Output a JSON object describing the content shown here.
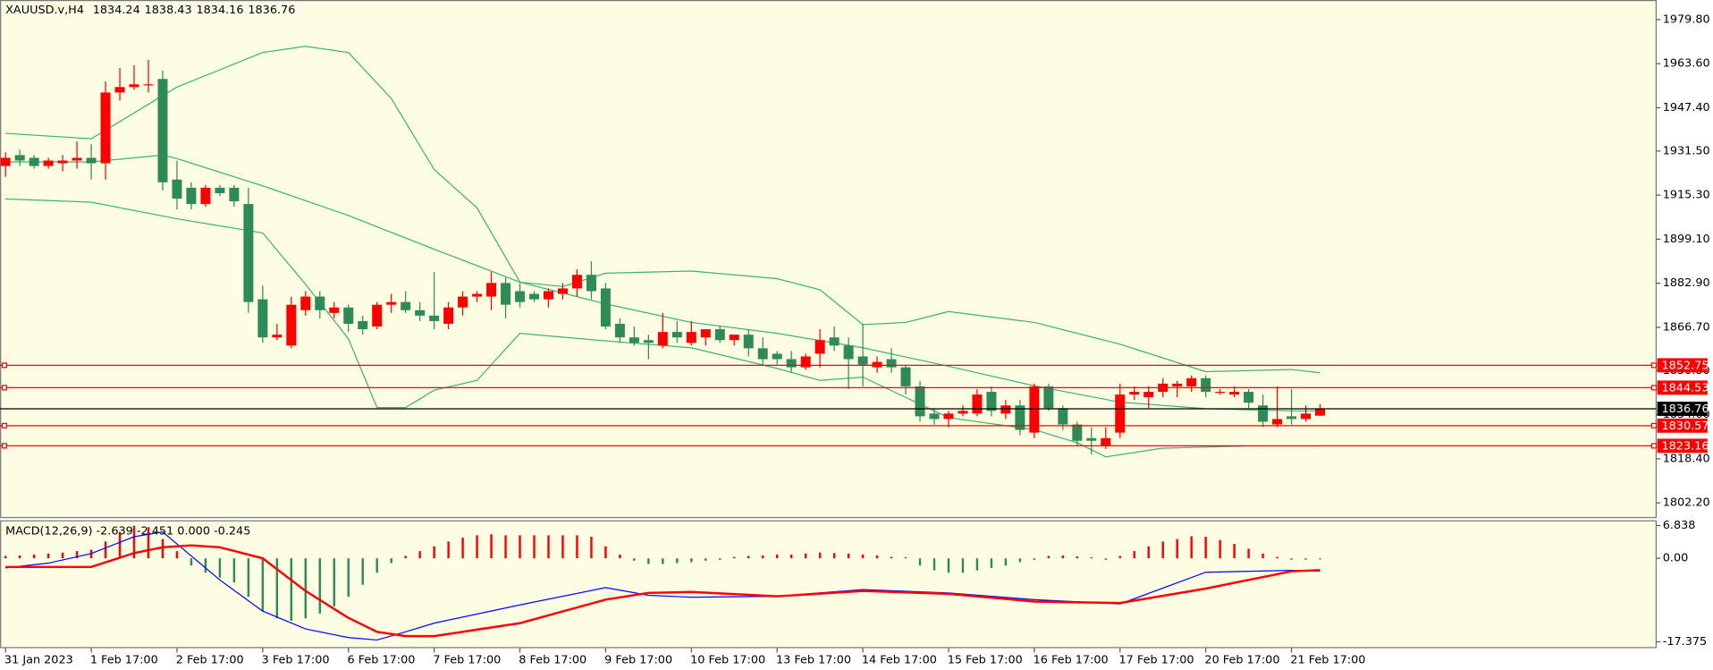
{
  "chart_data": [
    {
      "type": "candlestick",
      "title": "XAUUSD.v,H4",
      "categories": [
        "31 Jan 2023",
        null,
        null,
        null,
        null,
        null,
        "1 Feb 17:00",
        null,
        null,
        null,
        null,
        null,
        "2 Feb 17:00",
        null,
        null,
        null,
        null,
        null,
        "3 Feb 17:00",
        null,
        null,
        null,
        null,
        null,
        "6 Feb 17:00",
        null,
        null,
        null,
        null,
        null,
        "7 Feb 17:00",
        null,
        null,
        null,
        null,
        null,
        "8 Feb 17:00",
        null,
        null,
        null,
        null,
        null,
        "9 Feb 17:00",
        null,
        null,
        null,
        null,
        null,
        "10 Feb 17:00",
        null,
        null,
        null,
        null,
        null,
        "13 Feb 17:00",
        null,
        null,
        null,
        null,
        null,
        "14 Feb 17:00",
        null,
        null,
        null,
        null,
        null,
        "15 Feb 17:00",
        null,
        null,
        null,
        null,
        null,
        "16 Feb 17:00",
        null,
        null,
        null,
        null,
        null,
        "17 Feb 17:00",
        null,
        null,
        null,
        null,
        null,
        "20 Feb 17:00",
        null,
        null,
        null,
        null,
        null,
        "21 Feb 17:00",
        null,
        null
      ],
      "open": [
        1926,
        1930,
        1929,
        1926,
        1927,
        1928,
        1929,
        1927,
        1953,
        1955,
        1956,
        1958,
        1921,
        1918,
        1912,
        1918,
        1918,
        1912,
        1877,
        1863,
        1860,
        1873,
        1878,
        1872,
        1874,
        1869,
        1867,
        1875,
        1876,
        1873,
        1871,
        1868,
        1874,
        1878,
        1878,
        1883,
        1880,
        1879,
        1877,
        1879,
        1881,
        1886,
        1881,
        1868,
        1863,
        1862,
        1860,
        1865,
        1861,
        1863,
        1866,
        1862,
        1864,
        1859,
        1857,
        1855,
        1852,
        1857,
        1863,
        1860,
        1856,
        1852,
        1855,
        1852,
        1845,
        1835,
        1833,
        1835,
        1835,
        1843,
        1835,
        1838,
        1828,
        1845,
        1837,
        1831,
        1826,
        1823,
        1828,
        1842,
        1841,
        1843,
        1845,
        1845,
        1848,
        1843,
        1842,
        1843,
        1838,
        1831,
        1834,
        1833,
        1834.24
      ],
      "high": [
        1931,
        1932,
        1930,
        1929,
        1930,
        1935,
        1934,
        1957,
        1962,
        1963,
        1965,
        1961,
        1928,
        1920,
        1919,
        1919,
        1919,
        1918,
        1882,
        1868,
        1878,
        1880,
        1880,
        1876,
        1875,
        1871,
        1876,
        1879,
        1880,
        1876,
        1887,
        1876,
        1880,
        1880,
        1887,
        1885,
        1883,
        1880,
        1881,
        1883,
        1888,
        1891,
        1883,
        1870,
        1867,
        1864,
        1872,
        1869,
        1869,
        1866,
        1867,
        1864,
        1866,
        1863,
        1858,
        1858,
        1857,
        1866,
        1867,
        1863,
        1868,
        1856,
        1859,
        1853,
        1847,
        1837,
        1836,
        1838,
        1844,
        1845,
        1840,
        1840,
        1846,
        1846,
        1838,
        1832,
        1830,
        1830,
        1846,
        1845,
        1845,
        1848,
        1847,
        1849,
        1849,
        1844,
        1845,
        1844,
        1842,
        1845,
        1844,
        1838,
        1838.43
      ],
      "low": [
        1922,
        1926,
        1925,
        1925,
        1924,
        1925,
        1921,
        1921,
        1950,
        1954,
        1953,
        1917,
        1910,
        1910,
        1911,
        1915,
        1911,
        1872,
        1861,
        1862,
        1859,
        1871,
        1870,
        1870,
        1865,
        1864,
        1866,
        1872,
        1872,
        1869,
        1866,
        1866,
        1871,
        1876,
        1873,
        1870,
        1874,
        1876,
        1874,
        1877,
        1878,
        1877,
        1866,
        1861,
        1860,
        1855,
        1859,
        1861,
        1860,
        1860,
        1861,
        1860,
        1856,
        1853,
        1853,
        1850,
        1851,
        1852,
        1858,
        1844,
        1845,
        1850,
        1850,
        1842,
        1832,
        1831,
        1830,
        1834,
        1834,
        1834,
        1833,
        1827,
        1826,
        1836,
        1829,
        1823,
        1820,
        1822,
        1826,
        1840,
        1837,
        1841,
        1841,
        1843,
        1841,
        1842,
        1841,
        1837,
        1830,
        1830,
        1831,
        1832,
        1834.16
      ],
      "close": [
        1929,
        1928,
        1926,
        1928,
        1928,
        1929,
        1927,
        1953,
        1955,
        1956,
        1956,
        1920,
        1914,
        1912,
        1918,
        1916,
        1913,
        1876,
        1863,
        1864,
        1875,
        1878,
        1873,
        1874,
        1868,
        1866,
        1875,
        1876,
        1873,
        1871,
        1869,
        1874,
        1878,
        1879,
        1883,
        1875,
        1876,
        1877,
        1880,
        1881,
        1886,
        1880,
        1867,
        1863,
        1861,
        1861,
        1865,
        1863,
        1865,
        1866,
        1862,
        1864,
        1859,
        1855,
        1855,
        1852,
        1856,
        1862,
        1860,
        1855,
        1853,
        1854,
        1852,
        1845,
        1834,
        1833,
        1835,
        1836,
        1842,
        1836,
        1838,
        1829,
        1845,
        1837,
        1831,
        1825,
        1825,
        1826,
        1842,
        1843,
        1843,
        1846,
        1846,
        1848,
        1843,
        1843,
        1843,
        1839,
        1832,
        1833,
        1833,
        1835,
        1836.76
      ],
      "up_color": "#ff0000",
      "down_color": "#2e8b57",
      "bands": [
        {
          "color": "#3cb371",
          "x": [
            0,
            6,
            12,
            18,
            21,
            24,
            27,
            30,
            33,
            36,
            39,
            42,
            48,
            54,
            57,
            60,
            63,
            66,
            72,
            78,
            84,
            90,
            92
          ],
          "values": [
            1938,
            1936,
            1955,
            1967.7,
            1970,
            1967.7,
            1950.8,
            1924.7,
            1910.6,
            1883.3,
            1881.7,
            1886.6,
            1887.4,
            1884.6,
            1880.5,
            1867.7,
            1868.5,
            1872.5,
            1868.5,
            1860.5,
            1850.4,
            1851.2,
            1850
          ]
        },
        {
          "color": "#3cb371",
          "x": [
            0,
            6,
            11,
            12,
            18,
            24,
            30,
            36,
            42,
            48,
            54,
            60,
            66,
            72,
            78,
            84,
            90,
            92
          ],
          "values": [
            1927.5,
            1927.5,
            1930,
            1928.7,
            1918.7,
            1907.8,
            1895.4,
            1883.3,
            1875.3,
            1868.5,
            1864.5,
            1859.2,
            1852.4,
            1845.2,
            1839.2,
            1836.8,
            1836,
            1836
          ]
        },
        {
          "color": "#3cb371",
          "x": [
            0,
            6,
            12,
            18,
            21,
            24,
            26,
            28,
            30,
            33,
            36,
            42,
            48,
            54,
            57,
            60,
            66,
            72,
            75,
            77,
            81,
            87,
            92
          ],
          "values": [
            1913.9,
            1912.7,
            1906.6,
            1901.4,
            1882.5,
            1862.5,
            1837.2,
            1837.2,
            1843.6,
            1847.2,
            1864.5,
            1861.7,
            1859.2,
            1851.6,
            1847.2,
            1848.4,
            1833.5,
            1829.1,
            1824.3,
            1819.1,
            1822.3,
            1823.1,
            1823.1
          ]
        }
      ],
      "levels": {
        "color": "#ff0000",
        "values": [
          1852.75,
          1844.53,
          1830.57,
          1823.16
        ]
      },
      "bid_color": "#000000",
      "ylim": [
        1796.6,
        1987.0
      ],
      "yticks": [
        {
          "value": 1979.8,
          "label": "1979.80"
        },
        {
          "value": 1963.6,
          "label": "1963.60"
        },
        {
          "value": 1947.4,
          "label": "1947.40"
        },
        {
          "value": 1931.5,
          "label": "1931.50"
        },
        {
          "value": 1915.3,
          "label": "1915.30"
        },
        {
          "value": 1899.1,
          "label": "1899.10"
        },
        {
          "value": 1882.9,
          "label": "1882.90"
        },
        {
          "value": 1866.7,
          "label": "1866.70"
        },
        {
          "value": 1850.8,
          "label": "1850.80"
        },
        {
          "value": 1834.6,
          "label": "1834.60"
        },
        {
          "value": 1818.4,
          "label": "1818.40"
        },
        {
          "value": 1802.2,
          "label": "1802.20"
        }
      ]
    },
    {
      "type": "macd",
      "title": "MACD(12,26,9) -2.639 -2.451 0.000 -0.245",
      "histogram": {
        "up_color": "#ff0000",
        "down_color": "#2e8b57",
        "values": [
          0.5,
          0.6,
          0.8,
          1,
          1.2,
          1.5,
          1.8,
          3.5,
          5.5,
          6.8,
          6.5,
          4,
          1.5,
          -1.5,
          -3,
          -4,
          -5,
          -8,
          -11,
          -12.5,
          -13,
          -12.5,
          -11.5,
          -10,
          -8,
          -5.5,
          -3,
          -1,
          0.5,
          1.5,
          2.5,
          3.5,
          4.3,
          4.8,
          5,
          4.8,
          4.8,
          4.8,
          4.8,
          4.8,
          4.8,
          4.5,
          2.5,
          0.8,
          -0.5,
          -1.2,
          -1.2,
          -1,
          -0.8,
          -0.5,
          -0.3,
          0.3,
          0.5,
          0.6,
          0.8,
          0.8,
          1,
          1.2,
          1.1,
          1,
          0.8,
          0.6,
          0.3,
          0.2,
          -1.5,
          -2.5,
          -3,
          -3,
          -2.5,
          -2,
          -1.5,
          -0.8,
          -0.3,
          0.5,
          0.6,
          0.4,
          0.2,
          -0.3,
          0.5,
          1.5,
          2.5,
          3.5,
          4,
          4.6,
          4.5,
          3.8,
          3,
          2,
          1,
          0.3,
          -0.3,
          -0.3,
          -0.245
        ]
      },
      "series": [
        {
          "color": "#0000ff",
          "x": [
            0,
            3,
            6,
            9,
            11,
            12,
            15,
            18,
            21,
            24,
            26,
            28,
            30,
            36,
            42,
            45,
            48,
            54,
            60,
            66,
            72,
            78,
            84,
            90,
            92
          ],
          "values": [
            -2,
            -1,
            1,
            4.5,
            5.5,
            3,
            -4.5,
            -11,
            -14.7,
            -16.5,
            -17,
            -15.3,
            -13.5,
            -9.7,
            -6.1,
            -7.7,
            -8.1,
            -7.9,
            -6.5,
            -7.2,
            -8.6,
            -9.5,
            -2.9,
            -2.5,
            -2.639
          ]
        },
        {
          "color": "#ff0000",
          "x": [
            0,
            6,
            9,
            11,
            13,
            15,
            18,
            21,
            24,
            26,
            28,
            30,
            36,
            42,
            45,
            48,
            54,
            60,
            66,
            72,
            78,
            84,
            90,
            92
          ],
          "values": [
            -1.8,
            -1.8,
            1.1,
            2.3,
            2.7,
            2.3,
            0,
            -6.8,
            -12.4,
            -15.3,
            -16.2,
            -16.2,
            -13.5,
            -8.6,
            -7.2,
            -7,
            -7.9,
            -6.8,
            -7.4,
            -9,
            -9.3,
            -6.3,
            -2.7,
            -2.451
          ]
        }
      ],
      "ylim": [
        -18.7,
        7.7
      ],
      "yticks": [
        6.838,
        {
          "value": 0,
          "label": "0.00"
        },
        -17.375
      ]
    }
  ]
}
